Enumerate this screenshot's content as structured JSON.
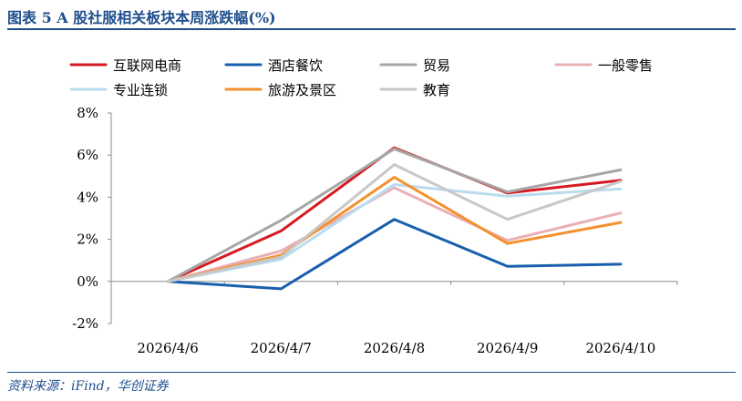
{
  "figure": {
    "title": "图表 5   A 股社服相关板块本周涨跌幅(%)",
    "source": "资料来源：iFind，华创证券"
  },
  "chart_data": {
    "type": "line",
    "title": "A 股社服相关板块本周涨跌幅(%)",
    "xlabel": "",
    "ylabel": "",
    "x": [
      "2026/4/6",
      "2026/4/7",
      "2026/4/8",
      "2026/4/9",
      "2026/4/10"
    ],
    "ylim": [
      -2,
      8
    ],
    "yticks": [
      -2,
      0,
      2,
      4,
      6,
      8
    ],
    "ytick_labels": [
      "-2%",
      "0%",
      "2%",
      "4%",
      "6%",
      "8%"
    ],
    "grid": false,
    "legend_position": "top",
    "series": [
      {
        "name": "互联网电商",
        "color": "#d71a22",
        "values": [
          0.0,
          2.4,
          6.35,
          4.2,
          4.8
        ]
      },
      {
        "name": "酒店餐饮",
        "color": "#1a5fae",
        "values": [
          0.0,
          -0.35,
          2.95,
          0.72,
          0.82
        ]
      },
      {
        "name": "贸易",
        "color": "#a6a6a6",
        "values": [
          0.0,
          2.9,
          6.3,
          4.25,
          5.3
        ]
      },
      {
        "name": "一般零售",
        "color": "#e9b0b4",
        "values": [
          0.0,
          1.45,
          4.45,
          1.95,
          3.25
        ]
      },
      {
        "name": "专业连锁",
        "color": "#b9dcee",
        "values": [
          0.0,
          1.05,
          4.6,
          4.05,
          4.4
        ]
      },
      {
        "name": "旅游及景区",
        "color": "#f5902e",
        "values": [
          0.0,
          1.25,
          4.95,
          1.8,
          2.8
        ]
      },
      {
        "name": "教育",
        "color": "#c8c8c8",
        "values": [
          0.0,
          1.15,
          5.55,
          2.95,
          4.75
        ]
      }
    ]
  }
}
